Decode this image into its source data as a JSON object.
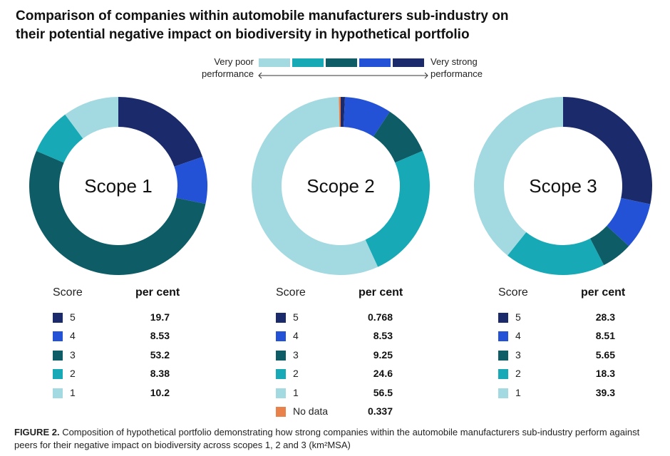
{
  "title_lines": [
    "Comparison of companies within automobile manufacturers sub-industry on",
    "their potential negative impact on biodiversity in hypothetical portfolio"
  ],
  "scale": {
    "left_label_line1": "Very poor",
    "left_label_line2": "performance",
    "right_label_line1": "Very strong",
    "right_label_line2": "performance",
    "colors": [
      "#a3d9e0",
      "#17a9b5",
      "#0d5c66",
      "#2352d6",
      "#1b2a6b"
    ]
  },
  "legend_headers": {
    "score": "Score",
    "pct": "per cent"
  },
  "colors": {
    "5": "#1b2a6b",
    "4": "#2352d6",
    "3": "#0d5c66",
    "2": "#17a9b5",
    "1": "#a3d9e0",
    "nodata": "#e8824a"
  },
  "chart_data": [
    {
      "type": "pie",
      "title": "Scope 1",
      "donut": true,
      "categories": [
        "5",
        "4",
        "3",
        "2",
        "1"
      ],
      "values": [
        19.7,
        8.53,
        53.2,
        8.38,
        10.2
      ],
      "value_labels": [
        "19.7",
        "8.53",
        "53.2",
        "8.38",
        "10.2"
      ]
    },
    {
      "type": "pie",
      "title": "Scope 2",
      "donut": true,
      "categories": [
        "5",
        "4",
        "3",
        "2",
        "1",
        "No data"
      ],
      "values": [
        0.768,
        8.53,
        9.25,
        24.6,
        56.5,
        0.337
      ],
      "value_labels": [
        "0.768",
        "8.53",
        "9.25",
        "24.6",
        "56.5",
        "0.337"
      ]
    },
    {
      "type": "pie",
      "title": "Scope 3",
      "donut": true,
      "categories": [
        "5",
        "4",
        "3",
        "2",
        "1"
      ],
      "values": [
        28.3,
        8.51,
        5.65,
        18.3,
        39.3
      ],
      "value_labels": [
        "28.3",
        "8.51",
        "5.65",
        "18.3",
        "39.3"
      ]
    }
  ],
  "caption": {
    "prefix": "FIGURE 2.",
    "text": " Composition of hypothetical portfolio demonstrating how strong companies within the automobile manufacturers sub-industry perform against peers for their negative impact on biodiversity across scopes 1, 2 and 3 (km²MSA)"
  }
}
